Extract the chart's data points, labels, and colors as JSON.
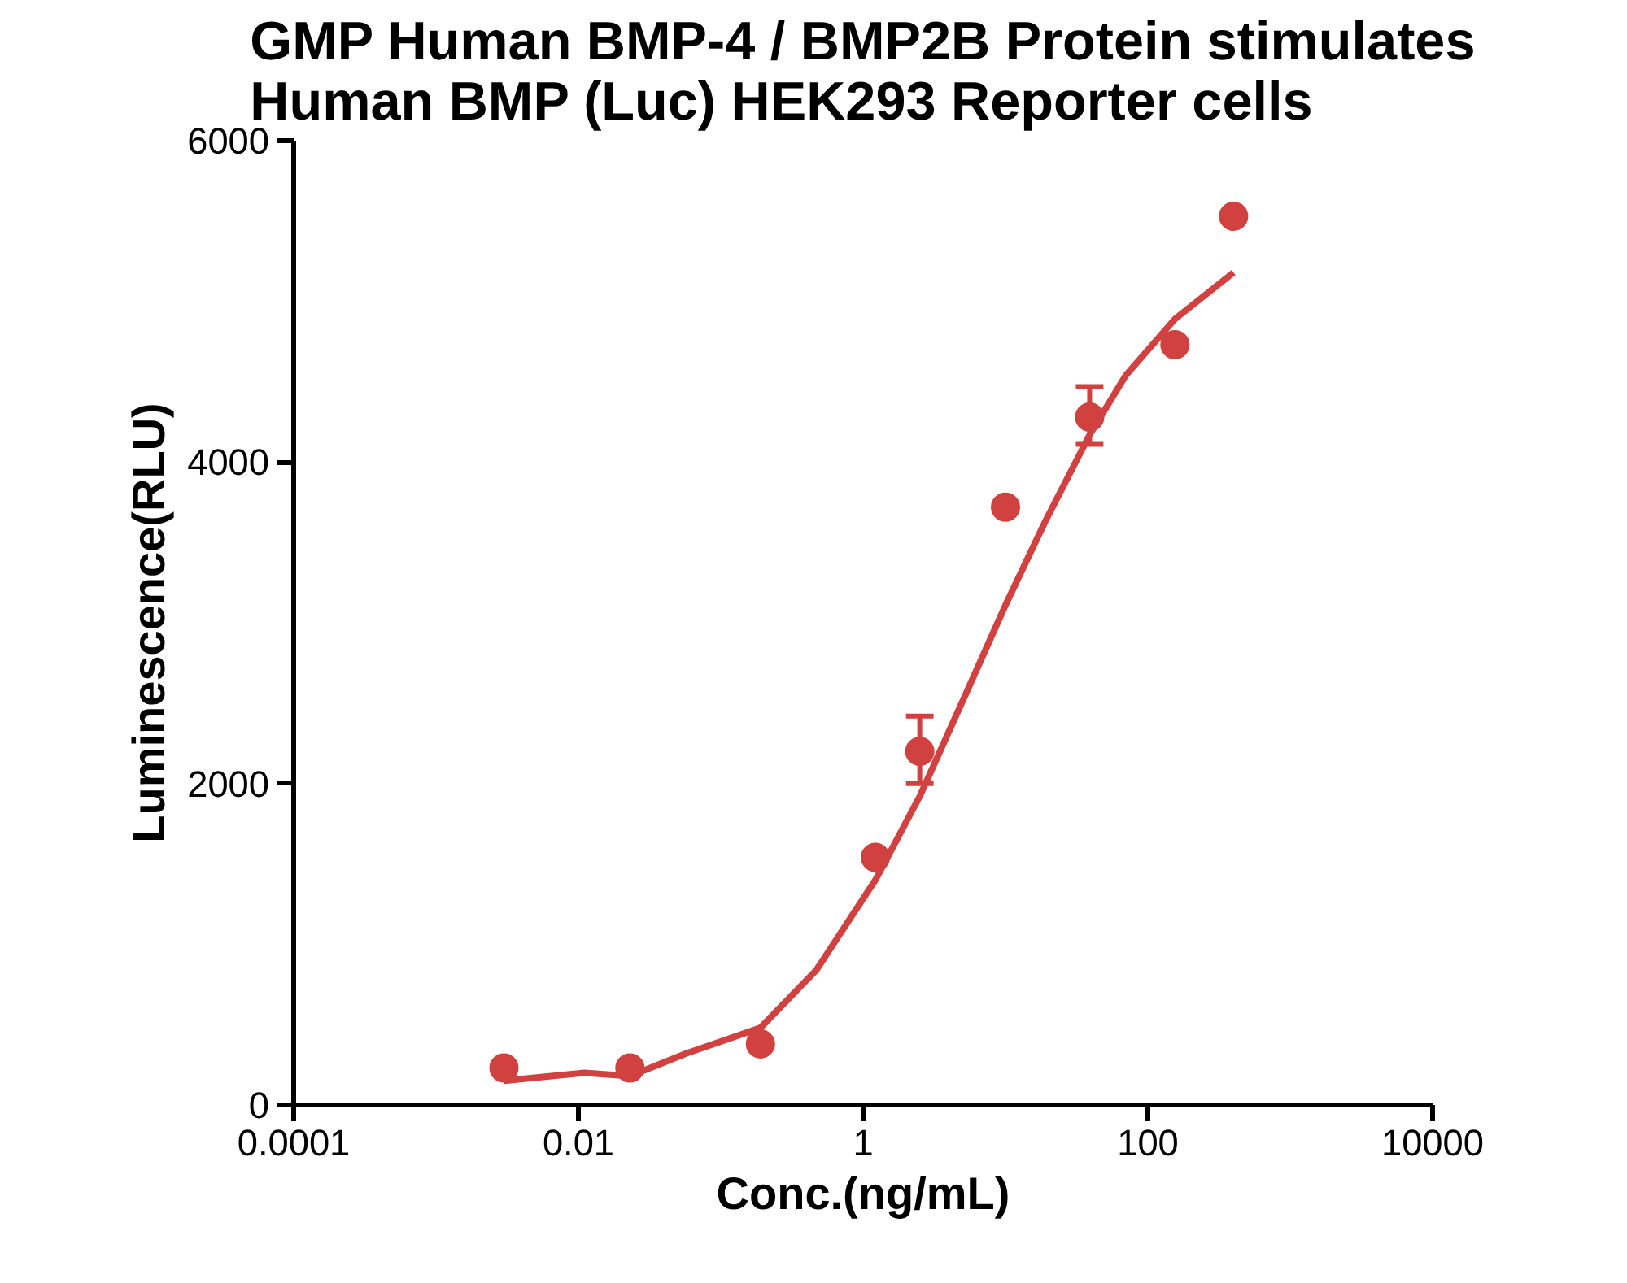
{
  "chart_data": {
    "type": "scatter",
    "title": "GMP Human BMP-4 / BMP2B Protein stimulates\nHuman BMP (Luc) HEK293 Reporter cells",
    "xlabel": "Conc.(ng/mL)",
    "ylabel": "Luminescence(RLU)",
    "log": "x",
    "xlim": [
      0.0001,
      10000
    ],
    "xticks": [
      0.0001,
      0.01,
      1,
      100,
      10000
    ],
    "ylim": [
      0,
      6000
    ],
    "yticks": [
      0,
      2000,
      4000,
      6000
    ],
    "grid": false,
    "marker": "circle",
    "series": [
      {
        "color": "#d0413f",
        "x": [
          0.003,
          0.023,
          0.19,
          1.22,
          2.5,
          10,
          39,
          155,
          400
        ],
        "values": [
          230,
          230,
          380,
          1540,
          2200,
          3720,
          4280,
          4730,
          5530
        ],
        "errors": [
          null,
          null,
          null,
          null,
          [
            2000,
            2420
          ],
          null,
          [
            4110,
            4470
          ],
          null,
          null
        ]
      },
      {
        "type": "line",
        "color": "#d0413f",
        "line_style": "solid",
        "marker": "none",
        "x": [
          0.003,
          0.011,
          0.023,
          0.057,
          0.19,
          0.47,
          1.22,
          2.5,
          5.1,
          10,
          19,
          39,
          70,
          155,
          400
        ],
        "values": [
          150,
          200,
          180,
          320,
          480,
          840,
          1400,
          1920,
          2530,
          3110,
          3630,
          4170,
          4540,
          4890,
          5180
        ]
      }
    ]
  }
}
